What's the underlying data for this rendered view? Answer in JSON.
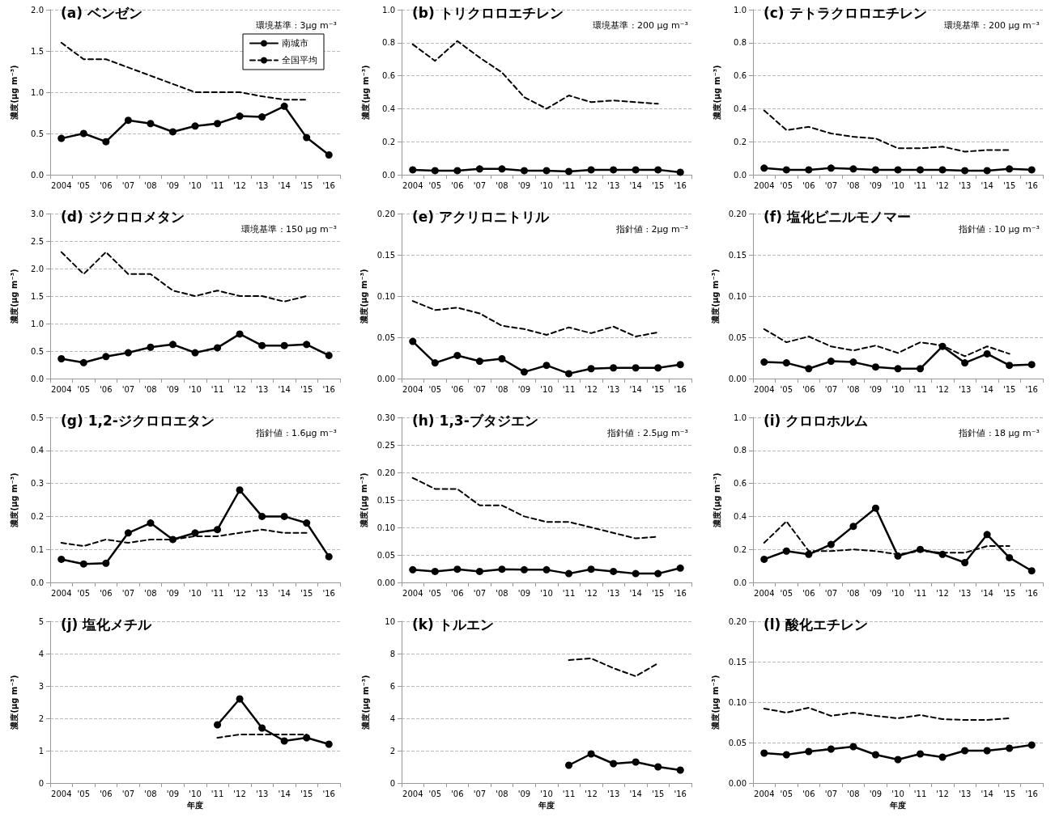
{
  "chart_data": [
    {
      "type": "line",
      "title": "(a) ベンゼン",
      "ylabel": "濃度(μg m⁻³)",
      "annotations": [
        "環境基準 : 3μg m⁻³"
      ],
      "categories": [
        "2004",
        "'05",
        "'06",
        "'07",
        "'08",
        "'09",
        "'10",
        "'11",
        "'12",
        "'13",
        "'14",
        "'15",
        "'16"
      ],
      "legend": "top right",
      "grid": "y",
      "series": [
        {
          "name": "南城市",
          "color": "#000000",
          "marker": "circle",
          "line_style": "solid",
          "values": [
            0.44,
            0.5,
            0.4,
            0.66,
            0.62,
            0.52,
            0.59,
            0.62,
            0.71,
            0.7,
            0.83,
            0.45,
            0.24
          ]
        },
        {
          "name": "全国平均",
          "color": "#000000",
          "marker": "none",
          "line_style": "dashed",
          "values": [
            1.6,
            1.4,
            1.4,
            1.3,
            1.2,
            1.1,
            1.0,
            1.0,
            1.0,
            0.95,
            0.91,
            0.91,
            null
          ]
        }
      ],
      "ylim": [
        0,
        2
      ],
      "yticks": [
        {
          "value": 0,
          "label": "0.0"
        },
        0.5,
        {
          "value": 1,
          "label": "1.0"
        },
        1.5,
        {
          "value": 2,
          "label": "2.0"
        }
      ]
    },
    {
      "type": "line",
      "title": "(b) トリクロロエチレン",
      "ylabel": "濃度(μg m⁻³)",
      "annotations": [
        "環境基準 : 200 μg m⁻³"
      ],
      "categories": [
        "2004",
        "'05",
        "'06",
        "'07",
        "'08",
        "'09",
        "'10",
        "'11",
        "'12",
        "'13",
        "'14",
        "'15",
        "'16"
      ],
      "grid": "y",
      "series": [
        {
          "color": "#000000",
          "marker": "circle",
          "line_style": "solid",
          "values": [
            0.03,
            0.025,
            0.025,
            0.035,
            0.035,
            0.025,
            0.025,
            0.02,
            0.03,
            0.03,
            0.03,
            0.03,
            0.015
          ]
        },
        {
          "color": "#000000",
          "marker": "none",
          "line_style": "dashed",
          "values": [
            0.79,
            0.69,
            0.81,
            0.71,
            0.62,
            0.47,
            0.4,
            0.48,
            0.44,
            0.45,
            0.44,
            0.43,
            null
          ]
        }
      ],
      "ylim": [
        0,
        1
      ],
      "yticks": [
        {
          "value": 0,
          "label": "0.0"
        },
        0.2,
        0.4,
        0.6,
        0.8,
        {
          "value": 1,
          "label": "1.0"
        }
      ]
    },
    {
      "type": "line",
      "title": "(c) テトラクロロエチレン",
      "ylabel": "濃度(μg m⁻³)",
      "annotations": [
        "環境基準 : 200 μg m⁻³"
      ],
      "categories": [
        "2004",
        "'05",
        "'06",
        "'07",
        "'08",
        "'09",
        "'10",
        "'11",
        "'12",
        "'13",
        "'14",
        "'15",
        "'16"
      ],
      "grid": "y",
      "series": [
        {
          "color": "#000000",
          "marker": "circle",
          "line_style": "solid",
          "values": [
            0.04,
            0.03,
            0.03,
            0.04,
            0.035,
            0.03,
            0.03,
            0.03,
            0.03,
            0.025,
            0.025,
            0.035,
            0.03
          ]
        },
        {
          "color": "#000000",
          "marker": "none",
          "line_style": "dashed",
          "values": [
            0.39,
            0.27,
            0.29,
            0.25,
            0.23,
            0.22,
            0.16,
            0.16,
            0.17,
            0.14,
            0.15,
            0.15,
            null
          ]
        }
      ],
      "ylim": [
        0,
        1
      ],
      "yticks": [
        {
          "value": 0,
          "label": "0.0"
        },
        0.2,
        0.4,
        0.6,
        0.8,
        {
          "value": 1,
          "label": "1.0"
        }
      ]
    },
    {
      "type": "line",
      "title": "(d) ジクロロメタン",
      "ylabel": "濃度(μg m⁻³)",
      "annotations": [
        "環境基準 : 150 μg m⁻³"
      ],
      "categories": [
        "2004",
        "'05",
        "'06",
        "'07",
        "'08",
        "'09",
        "'10",
        "'11",
        "'12",
        "'13",
        "'14",
        "'15",
        "'16"
      ],
      "grid": "y",
      "series": [
        {
          "color": "#000000",
          "marker": "circle",
          "line_style": "solid",
          "values": [
            0.36,
            0.29,
            0.4,
            0.47,
            0.57,
            0.62,
            0.47,
            0.56,
            0.81,
            0.6,
            0.6,
            0.62,
            0.42
          ]
        },
        {
          "color": "#000000",
          "marker": "none",
          "line_style": "dashed",
          "values": [
            2.3,
            1.9,
            2.3,
            1.9,
            1.9,
            1.6,
            1.5,
            1.6,
            1.5,
            1.5,
            1.4,
            1.5,
            null
          ]
        }
      ],
      "ylim": [
        0,
        3
      ],
      "yticks": [
        {
          "value": 0,
          "label": "0.0"
        },
        0.5,
        {
          "value": 1,
          "label": "1.0"
        },
        1.5,
        {
          "value": 2,
          "label": "2.0"
        },
        2.5,
        {
          "value": 3,
          "label": "3.0"
        }
      ]
    },
    {
      "type": "line",
      "title": "(e) アクリロニトリル",
      "ylabel": "濃度(μg m⁻³)",
      "annotations": [
        "指針値 : 2μg m⁻³"
      ],
      "categories": [
        "2004",
        "'05",
        "'06",
        "'07",
        "'08",
        "'09",
        "'10",
        "'11",
        "'12",
        "'13",
        "'14",
        "'15",
        "'16"
      ],
      "grid": "y",
      "series": [
        {
          "color": "#000000",
          "marker": "circle",
          "line_style": "solid",
          "values": [
            0.045,
            0.019,
            0.028,
            0.021,
            0.024,
            0.008,
            0.016,
            0.006,
            0.012,
            0.013,
            0.013,
            0.013,
            0.017
          ]
        },
        {
          "color": "#000000",
          "marker": "none",
          "line_style": "dashed",
          "values": [
            0.094,
            0.083,
            0.086,
            0.079,
            0.064,
            0.06,
            0.053,
            0.062,
            0.055,
            0.063,
            0.051,
            0.056,
            null
          ]
        }
      ],
      "ylim": [
        0,
        0.2
      ],
      "yticks": [
        {
          "value": 0,
          "label": "0.00"
        },
        0.05,
        {
          "value": 0.1,
          "label": "0.10"
        },
        0.15,
        {
          "value": 0.2,
          "label": "0.20"
        }
      ]
    },
    {
      "type": "line",
      "title": "(f) 塩化ビニルモノマー",
      "ylabel": "濃度(μg m⁻³)",
      "annotations": [
        "指針値 : 10 μg m⁻³"
      ],
      "categories": [
        "2004",
        "'05",
        "'06",
        "'07",
        "'08",
        "'09",
        "'10",
        "'11",
        "'12",
        "'13",
        "'14",
        "'15",
        "'16"
      ],
      "grid": "y",
      "series": [
        {
          "color": "#000000",
          "marker": "circle",
          "line_style": "solid",
          "values": [
            0.02,
            0.019,
            0.012,
            0.021,
            0.02,
            0.014,
            0.012,
            0.012,
            0.039,
            0.019,
            0.03,
            0.016,
            0.017
          ]
        },
        {
          "color": "#000000",
          "marker": "none",
          "line_style": "dashed",
          "values": [
            0.06,
            0.044,
            0.051,
            0.039,
            0.034,
            0.04,
            0.031,
            0.044,
            0.04,
            0.027,
            0.039,
            0.03,
            null
          ]
        }
      ],
      "ylim": [
        0,
        0.2
      ],
      "yticks": [
        {
          "value": 0,
          "label": "0.00"
        },
        0.05,
        {
          "value": 0.1,
          "label": "0.10"
        },
        0.15,
        {
          "value": 0.2,
          "label": "0.20"
        }
      ]
    },
    {
      "type": "line",
      "title": "(g) 1,2-ジクロロエタン",
      "ylabel": "濃度(μg m⁻³)",
      "annotations": [
        "指針値 : 1.6μg m⁻³"
      ],
      "categories": [
        "2004",
        "'05",
        "'06",
        "'07",
        "'08",
        "'09",
        "'10",
        "'11",
        "'12",
        "'13",
        "'14",
        "'15",
        "'16"
      ],
      "grid": "y",
      "series": [
        {
          "color": "#000000",
          "marker": "circle",
          "line_style": "solid",
          "values": [
            0.07,
            0.056,
            0.058,
            0.15,
            0.18,
            0.13,
            0.15,
            0.16,
            0.28,
            0.2,
            0.2,
            0.18,
            0.078
          ]
        },
        {
          "color": "#000000",
          "marker": "none",
          "line_style": "dashed",
          "values": [
            0.12,
            0.11,
            0.13,
            0.12,
            0.13,
            0.13,
            0.14,
            0.14,
            0.15,
            0.16,
            0.15,
            0.15,
            null
          ]
        }
      ],
      "ylim": [
        0,
        0.5
      ],
      "yticks": [
        {
          "value": 0,
          "label": "0.0"
        },
        0.1,
        0.2,
        0.3,
        0.4,
        0.5
      ]
    },
    {
      "type": "line",
      "title": "(h) 1,3-ブタジエン",
      "ylabel": "濃度(μg m⁻³)",
      "annotations": [
        "指針値 : 2.5μg m⁻³"
      ],
      "categories": [
        "2004",
        "'05",
        "'06",
        "'07",
        "'08",
        "'09",
        "'10",
        "'11",
        "'12",
        "'13",
        "'14",
        "'15",
        "'16"
      ],
      "grid": "y",
      "series": [
        {
          "color": "#000000",
          "marker": "circle",
          "line_style": "solid",
          "values": [
            0.023,
            0.02,
            0.024,
            0.02,
            0.024,
            0.023,
            0.023,
            0.016,
            0.024,
            0.02,
            0.016,
            0.016,
            0.026
          ]
        },
        {
          "color": "#000000",
          "marker": "none",
          "line_style": "dashed",
          "values": [
            0.19,
            0.17,
            0.17,
            0.14,
            0.14,
            0.12,
            0.11,
            0.11,
            0.1,
            0.09,
            0.08,
            0.083,
            null
          ]
        }
      ],
      "ylim": [
        0,
        0.3
      ],
      "yticks": [
        {
          "value": 0,
          "label": "0.00"
        },
        0.05,
        {
          "value": 0.1,
          "label": "0.10"
        },
        0.15,
        {
          "value": 0.2,
          "label": "0.20"
        },
        0.25,
        {
          "value": 0.3,
          "label": "0.30"
        }
      ]
    },
    {
      "type": "line",
      "title": "(i) クロロホルム",
      "ylabel": "濃度(μg m⁻³)",
      "annotations": [
        "指針値 : 18 μg m⁻³"
      ],
      "categories": [
        "2004",
        "'05",
        "'06",
        "'07",
        "'08",
        "'09",
        "'10",
        "'11",
        "'12",
        "'13",
        "'14",
        "'15",
        "'16"
      ],
      "grid": "y",
      "series": [
        {
          "color": "#000000",
          "marker": "circle",
          "line_style": "solid",
          "values": [
            0.14,
            0.19,
            0.17,
            0.23,
            0.34,
            0.45,
            0.16,
            0.2,
            0.17,
            0.12,
            0.29,
            0.15,
            0.07
          ]
        },
        {
          "color": "#000000",
          "marker": "none",
          "line_style": "dashed",
          "values": [
            0.24,
            0.37,
            0.19,
            0.19,
            0.2,
            0.19,
            0.17,
            0.19,
            0.18,
            0.18,
            0.22,
            0.22,
            null
          ]
        }
      ],
      "ylim": [
        0,
        1
      ],
      "yticks": [
        {
          "value": 0,
          "label": "0.0"
        },
        0.2,
        0.4,
        0.6,
        0.8,
        {
          "value": 1,
          "label": "1.0"
        }
      ]
    },
    {
      "type": "line",
      "title": "(j) 塩化メチル",
      "ylabel": "濃度(μg m⁻³)",
      "xlabel": "年度",
      "categories": [
        "2004",
        "'05",
        "'06",
        "'07",
        "'08",
        "'09",
        "'10",
        "'11",
        "'12",
        "'13",
        "'14",
        "'15",
        "'16"
      ],
      "grid": "y",
      "series": [
        {
          "color": "#000000",
          "marker": "circle",
          "line_style": "solid",
          "values": [
            null,
            null,
            null,
            null,
            null,
            null,
            null,
            1.8,
            2.6,
            1.7,
            1.3,
            1.4,
            1.2
          ]
        },
        {
          "color": "#000000",
          "marker": "none",
          "line_style": "dashed",
          "values": [
            null,
            null,
            null,
            null,
            null,
            null,
            null,
            1.4,
            1.5,
            1.5,
            1.5,
            1.5,
            null
          ]
        }
      ],
      "ylim": [
        0,
        5
      ],
      "yticks": [
        0,
        1,
        2,
        3,
        4,
        5
      ]
    },
    {
      "type": "line",
      "title": "(k) トルエン",
      "ylabel": "濃度(μg m⁻³)",
      "xlabel": "年度",
      "categories": [
        "2004",
        "'05",
        "'06",
        "'07",
        "'08",
        "'09",
        "'10",
        "'11",
        "'12",
        "'13",
        "'14",
        "'15",
        "'16"
      ],
      "grid": "y",
      "series": [
        {
          "color": "#000000",
          "marker": "circle",
          "line_style": "solid",
          "values": [
            null,
            null,
            null,
            null,
            null,
            null,
            null,
            1.1,
            1.8,
            1.2,
            1.3,
            1.0,
            0.8
          ]
        },
        {
          "color": "#000000",
          "marker": "none",
          "line_style": "dashed",
          "values": [
            null,
            null,
            null,
            null,
            null,
            null,
            null,
            7.6,
            7.7,
            7.1,
            6.6,
            7.4,
            null
          ]
        }
      ],
      "ylim": [
        0,
        10
      ],
      "yticks": [
        0,
        2,
        4,
        6,
        8,
        10
      ]
    },
    {
      "type": "line",
      "title": "(l) 酸化エチレン",
      "ylabel": "濃度(μg m⁻³)",
      "xlabel": "年度",
      "categories": [
        "2004",
        "'05",
        "'06",
        "'07",
        "'08",
        "'09",
        "'10",
        "'11",
        "'12",
        "'13",
        "'14",
        "'15",
        "'16"
      ],
      "grid": "y",
      "series": [
        {
          "color": "#000000",
          "marker": "circle",
          "line_style": "solid",
          "values": [
            0.037,
            0.035,
            0.039,
            0.042,
            0.045,
            0.035,
            0.029,
            0.036,
            0.032,
            0.04,
            0.04,
            0.043,
            0.047
          ]
        },
        {
          "color": "#000000",
          "marker": "none",
          "line_style": "dashed",
          "values": [
            0.092,
            0.087,
            0.093,
            0.083,
            0.087,
            0.083,
            0.08,
            0.084,
            0.079,
            0.078,
            0.078,
            0.08,
            null
          ]
        }
      ],
      "ylim": [
        0,
        0.2
      ],
      "yticks": [
        {
          "value": 0,
          "label": "0.00"
        },
        0.05,
        {
          "value": 0.1,
          "label": "0.10"
        },
        0.15,
        {
          "value": 0.2,
          "label": "0.20"
        }
      ]
    }
  ]
}
